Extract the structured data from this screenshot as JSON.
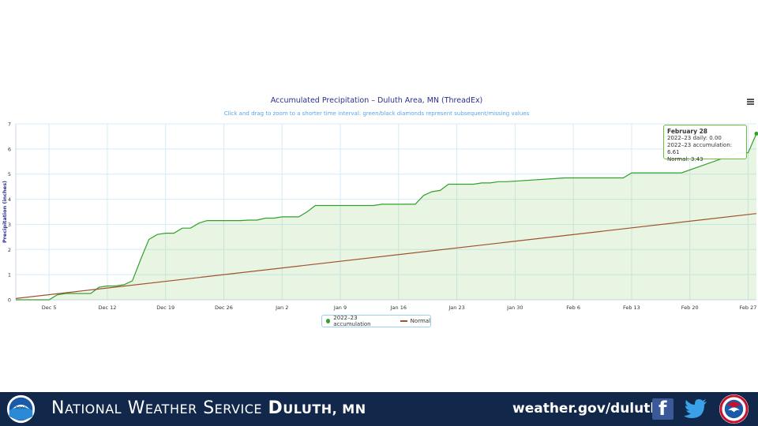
{
  "chart_data": {
    "type": "area",
    "title": "Accumulated Precipitation – Duluth Area, MN (ThreadEx)",
    "subtitle": "Click and drag to zoom to a shorter time interval: green/black diamonds represent subsequent/missing values",
    "ylabel": "Precipitation (inches)",
    "xlabel": "",
    "ylim": [
      0,
      7
    ],
    "yticks": [
      0,
      1,
      2,
      3,
      4,
      5,
      6,
      7
    ],
    "grid": true,
    "legend_position": "bottom-center",
    "x_tick_labels": [
      "Dec 5",
      "Dec 12",
      "Dec 19",
      "Dec 26",
      "Jan 2",
      "Jan 9",
      "Jan 16",
      "Jan 23",
      "Jan 30",
      "Feb 6",
      "Feb 13",
      "Feb 20",
      "Feb 27"
    ],
    "x_day_range": [
      0,
      89
    ],
    "series": [
      {
        "name": "2022–23 accumulation",
        "color": "#33a02c",
        "x_day": [
          0,
          4,
          5,
          6,
          7,
          9,
          10,
          11,
          12,
          13,
          14,
          15,
          16,
          17,
          18,
          19,
          20,
          21,
          22,
          23,
          24,
          25,
          26,
          27,
          28,
          29,
          30,
          31,
          32,
          33,
          34,
          35,
          36,
          37,
          38,
          40,
          43,
          44,
          45,
          46,
          47,
          48,
          49,
          50,
          51,
          52,
          53,
          54,
          55,
          56,
          57,
          58,
          59,
          66,
          67,
          68,
          73,
          74,
          75,
          76,
          77,
          80,
          86,
          87,
          88,
          89
        ],
        "values": [
          0.0,
          0.0,
          0.2,
          0.25,
          0.25,
          0.25,
          0.5,
          0.55,
          0.55,
          0.6,
          0.75,
          1.6,
          2.4,
          2.6,
          2.65,
          2.65,
          2.85,
          2.85,
          3.05,
          3.15,
          3.15,
          3.15,
          3.15,
          3.15,
          3.17,
          3.17,
          3.25,
          3.25,
          3.3,
          3.3,
          3.3,
          3.5,
          3.75,
          3.75,
          3.75,
          3.75,
          3.75,
          3.8,
          3.8,
          3.8,
          3.8,
          3.8,
          4.15,
          4.3,
          4.35,
          4.6,
          4.6,
          4.6,
          4.6,
          4.65,
          4.65,
          4.7,
          4.7,
          4.85,
          4.85,
          4.85,
          4.85,
          5.05,
          5.05,
          5.05,
          5.05,
          5.05,
          5.75,
          5.85,
          5.85,
          6.61
        ]
      },
      {
        "name": "Normal",
        "color": "#a0522d",
        "x_day": [
          0,
          89
        ],
        "values": [
          0.05,
          3.43
        ]
      }
    ],
    "tooltip": {
      "title": "February 28",
      "daily": "2022–23 daily: 0.00",
      "accumulation": "2022–23 accumulation: 6.61",
      "normal": "Normal: 3.43"
    }
  },
  "legend": {
    "accum_label": "2022–23 accumulation",
    "normal_label": "Normal"
  },
  "footer": {
    "office_part1_first": "N",
    "office_part1_rest": "ATIONAL",
    "office_part2_first": "W",
    "office_part2_rest": "EATHER",
    "office_part3_first": "S",
    "office_part3_rest": "ERVICE",
    "office_city": "D",
    "office_city_rest": "ULUTH, MN",
    "website": "weather.gov/duluth"
  },
  "colors": {
    "footer_bg": "#12284a",
    "accum": "#33a02c",
    "normal": "#a0522d",
    "grid": "#d7ebf5"
  }
}
